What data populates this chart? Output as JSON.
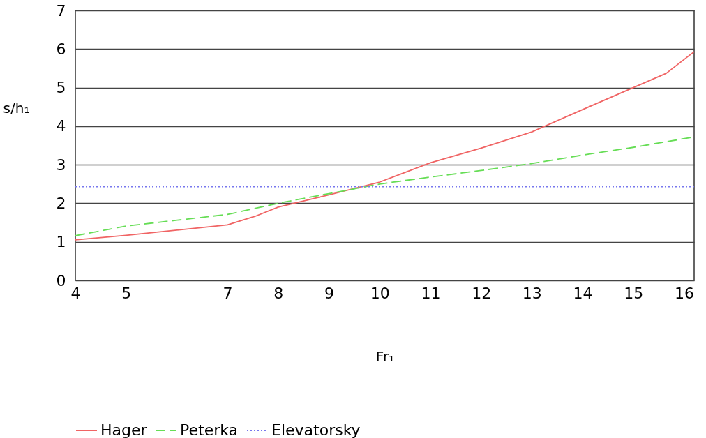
{
  "chart_data": {
    "type": "line",
    "xlabel": "Fr₁",
    "ylabel": "s/h₁",
    "xlim": [
      4,
      16.2
    ],
    "xticks": [
      4,
      5,
      7,
      8,
      9,
      10,
      11,
      12,
      13,
      14,
      15,
      16
    ],
    "ylim": [
      0,
      7
    ],
    "yticks": [
      0,
      1,
      2,
      3,
      4,
      5,
      6,
      7
    ],
    "grid": "y",
    "legend": "bottom",
    "marker": "none",
    "series": [
      {
        "name": "Hager",
        "color": "#f06464",
        "line_style": "solid",
        "x": [
          4,
          5,
          7,
          7.54,
          8,
          9,
          10,
          11,
          12,
          13,
          14,
          15,
          15.65,
          16.2
        ],
        "values": [
          1.05,
          1.17,
          1.44,
          1.66,
          1.9,
          2.22,
          2.55,
          3.05,
          3.43,
          3.85,
          4.43,
          5.0,
          5.37,
          5.93
        ]
      },
      {
        "name": "Peterka",
        "color": "#66dd55",
        "line_style": "dashed",
        "x": [
          4,
          5,
          7,
          8,
          9,
          10,
          11,
          12,
          13,
          14,
          15,
          16.2
        ],
        "values": [
          1.16,
          1.41,
          1.71,
          2.0,
          2.25,
          2.5,
          2.68,
          2.85,
          3.03,
          3.25,
          3.45,
          3.72
        ]
      },
      {
        "name": "Elevatorsky",
        "color": "#7777ee",
        "line_style": "dotted",
        "x": [
          4,
          16.2
        ],
        "values": [
          2.43,
          2.43
        ]
      }
    ]
  }
}
